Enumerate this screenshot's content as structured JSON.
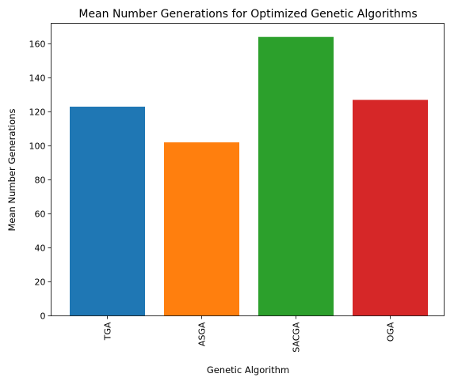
{
  "chart_data": {
    "type": "bar",
    "title": "Mean Number Generations for Optimized Genetic Algorithms",
    "xlabel": "Genetic Algorithm",
    "ylabel": "Mean Number Generations",
    "categories": [
      "TGA",
      "ASGA",
      "SACGA",
      "OGA"
    ],
    "values": [
      123,
      102,
      164,
      127
    ],
    "colors": [
      "#1f77b4",
      "#ff7f0e",
      "#2ca02c",
      "#d62728"
    ],
    "ylim": [
      0,
      172
    ],
    "yticks": [
      0,
      20,
      40,
      60,
      80,
      100,
      120,
      140,
      160
    ],
    "xtick_rotation": "vertical",
    "grid": false,
    "legend": "none"
  }
}
